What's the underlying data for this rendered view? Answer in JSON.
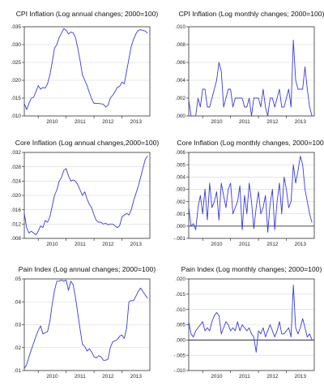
{
  "figure": {
    "colors": {
      "series": "#3a3adf",
      "grid": "#d6d6d6",
      "axis": "#333333",
      "zero_line": "#111111"
    }
  },
  "chart_data": [
    {
      "type": "line",
      "title": "CPI Inflation (Log annual changes; 2000=100)",
      "xlim": [
        2009.5,
        2014.0
      ],
      "ylim": [
        0.01,
        0.035
      ],
      "yticks": [
        0.01,
        0.015,
        0.02,
        0.025,
        0.03,
        0.035
      ],
      "ytick_labels": [
        ".010",
        ".015",
        ".020",
        ".025",
        ".030",
        ".035"
      ],
      "xticks": [
        2010,
        2011,
        2012,
        2013
      ],
      "xtick_labels": [
        "2010",
        "2011",
        "2012",
        "2013"
      ],
      "zero_line": false,
      "x": [
        2009.5,
        2009.583,
        2009.667,
        2009.75,
        2009.833,
        2009.917,
        2010.0,
        2010.083,
        2010.167,
        2010.25,
        2010.333,
        2010.417,
        2010.5,
        2010.583,
        2010.667,
        2010.75,
        2010.833,
        2010.917,
        2011.0,
        2011.083,
        2011.167,
        2011.25,
        2011.333,
        2011.417,
        2011.5,
        2011.583,
        2011.667,
        2011.75,
        2011.833,
        2011.917,
        2012.0,
        2012.083,
        2012.167,
        2012.25,
        2012.333,
        2012.417,
        2012.5,
        2012.583,
        2012.667,
        2012.75,
        2012.833,
        2012.917,
        2013.0,
        2013.083,
        2013.167,
        2013.25,
        2013.333,
        2013.417,
        2013.5,
        2013.583,
        2013.667,
        2013.75,
        2013.833,
        2013.917
      ],
      "y": [
        0.0135,
        0.0118,
        0.0135,
        0.015,
        0.0152,
        0.0168,
        0.0185,
        0.0175,
        0.018,
        0.0178,
        0.019,
        0.0215,
        0.025,
        0.029,
        0.03,
        0.032,
        0.0332,
        0.0345,
        0.034,
        0.033,
        0.0335,
        0.0333,
        0.032,
        0.029,
        0.0255,
        0.0215,
        0.02,
        0.0185,
        0.0165,
        0.0148,
        0.0135,
        0.0135,
        0.0135,
        0.0134,
        0.0133,
        0.0125,
        0.013,
        0.015,
        0.0158,
        0.0168,
        0.018,
        0.0183,
        0.0195,
        0.019,
        0.0225,
        0.026,
        0.0295,
        0.0315,
        0.033,
        0.034,
        0.0342,
        0.034,
        0.0338,
        0.0332
      ]
    },
    {
      "type": "line",
      "title": "CPI Inflation (Log monthly changes; 2000=100)",
      "xlim": [
        2009.5,
        2014.0
      ],
      "ylim": [
        0.0,
        0.01
      ],
      "yticks": [
        0.0,
        0.002,
        0.004,
        0.006,
        0.008,
        0.01
      ],
      "ytick_labels": [
        ".000",
        ".002",
        ".004",
        ".006",
        ".008",
        ".010"
      ],
      "xticks": [
        2010,
        2011,
        2012,
        2013
      ],
      "xtick_labels": [
        "2010",
        "2011",
        "2012",
        "2013"
      ],
      "zero_line": false,
      "x": [
        2009.5,
        2009.583,
        2009.667,
        2009.75,
        2009.833,
        2009.917,
        2010.0,
        2010.083,
        2010.167,
        2010.25,
        2010.333,
        2010.417,
        2010.5,
        2010.583,
        2010.667,
        2010.75,
        2010.833,
        2010.917,
        2011.0,
        2011.083,
        2011.167,
        2011.25,
        2011.333,
        2011.417,
        2011.5,
        2011.583,
        2011.667,
        2011.75,
        2011.833,
        2011.917,
        2012.0,
        2012.083,
        2012.167,
        2012.25,
        2012.333,
        2012.417,
        2012.5,
        2012.583,
        2012.667,
        2012.75,
        2012.833,
        2012.917,
        2013.0,
        2013.083,
        2013.167,
        2013.25,
        2013.333,
        2013.417,
        2013.5,
        2013.583,
        2013.667,
        2013.75,
        2013.833,
        2013.917
      ],
      "y": [
        0.0018,
        0.0,
        0.0,
        0.0,
        0.002,
        0.001,
        0.003,
        0.003,
        0.001,
        0.001,
        0.002,
        0.003,
        0.004,
        0.006,
        0.005,
        0.001,
        0.002,
        0.003,
        0.003,
        0.001,
        0.002,
        0.002,
        0.002,
        0.002,
        0.001,
        0.001,
        0.002,
        0.0,
        0.002,
        0.002,
        0.002,
        0.001,
        0.003,
        0.001,
        0.0,
        0.002,
        0.002,
        0.001,
        0.002,
        0.003,
        0.001,
        0.001,
        0.002,
        0.003,
        0.001,
        0.0085,
        0.004,
        0.003,
        0.003,
        0.003,
        0.0055,
        0.003,
        0.001,
        0.0
      ]
    },
    {
      "type": "line",
      "title": "Core Inflation (Log annual changes,2000=100)",
      "xlim": [
        2009.5,
        2014.0
      ],
      "ylim": [
        0.008,
        0.032
      ],
      "yticks": [
        0.008,
        0.012,
        0.016,
        0.02,
        0.024,
        0.028,
        0.032
      ],
      "ytick_labels": [
        ".008",
        ".012",
        ".016",
        ".020",
        ".024",
        ".028",
        ".032"
      ],
      "xticks": [
        2010,
        2011,
        2012,
        2013
      ],
      "xtick_labels": [
        "2010",
        "2011",
        "2012",
        "2013"
      ],
      "zero_line": false,
      "x": [
        2009.5,
        2009.583,
        2009.667,
        2009.75,
        2009.833,
        2009.917,
        2010.0,
        2010.083,
        2010.167,
        2010.25,
        2010.333,
        2010.417,
        2010.5,
        2010.583,
        2010.667,
        2010.75,
        2010.833,
        2010.917,
        2011.0,
        2011.083,
        2011.167,
        2011.25,
        2011.333,
        2011.417,
        2011.5,
        2011.583,
        2011.667,
        2011.75,
        2011.833,
        2011.917,
        2012.0,
        2012.083,
        2012.167,
        2012.25,
        2012.333,
        2012.417,
        2012.5,
        2012.583,
        2012.667,
        2012.75,
        2012.833,
        2012.917,
        2013.0,
        2013.083,
        2013.167,
        2013.25,
        2013.333,
        2013.417,
        2013.5,
        2013.583,
        2013.667,
        2013.75,
        2013.833,
        2013.917
      ],
      "y": [
        0.015,
        0.011,
        0.0095,
        0.01,
        0.0095,
        0.009,
        0.01,
        0.0115,
        0.011,
        0.013,
        0.0125,
        0.014,
        0.017,
        0.02,
        0.0215,
        0.024,
        0.025,
        0.027,
        0.0275,
        0.0255,
        0.024,
        0.0243,
        0.024,
        0.023,
        0.0215,
        0.02,
        0.021,
        0.019,
        0.0175,
        0.0165,
        0.0145,
        0.013,
        0.0125,
        0.0125,
        0.012,
        0.0122,
        0.0118,
        0.012,
        0.012,
        0.0115,
        0.011,
        0.0115,
        0.014,
        0.0145,
        0.015,
        0.0145,
        0.016,
        0.0185,
        0.0205,
        0.0225,
        0.025,
        0.0275,
        0.03,
        0.031
      ]
    },
    {
      "type": "line",
      "title": "Core Inflation (Log monthly changes, 2000=100)",
      "xlim": [
        2009.5,
        2014.0
      ],
      "ylim": [
        -0.001,
        0.006
      ],
      "yticks": [
        -0.001,
        0.0,
        0.001,
        0.002,
        0.003,
        0.004,
        0.005,
        0.006
      ],
      "ytick_labels": [
        "-.001",
        ".000",
        ".001",
        ".002",
        ".003",
        ".004",
        ".005",
        ".006"
      ],
      "xticks": [
        2010,
        2011,
        2012,
        2013
      ],
      "xtick_labels": [
        "2010",
        "2011",
        "2012",
        "2013"
      ],
      "zero_line": true,
      "x": [
        2009.5,
        2009.583,
        2009.667,
        2009.75,
        2009.833,
        2009.917,
        2010.0,
        2010.083,
        2010.167,
        2010.25,
        2010.333,
        2010.417,
        2010.5,
        2010.583,
        2010.667,
        2010.75,
        2010.833,
        2010.917,
        2011.0,
        2011.083,
        2011.167,
        2011.25,
        2011.333,
        2011.417,
        2011.5,
        2011.583,
        2011.667,
        2011.75,
        2011.833,
        2011.917,
        2012.0,
        2012.083,
        2012.167,
        2012.25,
        2012.333,
        2012.417,
        2012.5,
        2012.583,
        2012.667,
        2012.75,
        2012.833,
        2012.917,
        2013.0,
        2013.083,
        2013.167,
        2013.25,
        2013.333,
        2013.417,
        2013.5,
        2013.583,
        2013.667,
        2013.75,
        2013.833,
        2013.917
      ],
      "y": [
        0.0015,
        0.0,
        0.0002,
        -0.0003,
        0.0015,
        0.0025,
        0.001,
        0.003,
        0.0005,
        0.0035,
        0.0015,
        0.002,
        0.0028,
        0.0005,
        0.0035,
        0.0025,
        0.0015,
        0.003,
        0.0035,
        0.001,
        0.0015,
        0.002,
        0.0033,
        -0.0003,
        0.0025,
        0.001,
        0.0035,
        0.002,
        -0.0002,
        0.0015,
        0.0028,
        0.001,
        0.0015,
        0.0025,
        -0.0005,
        0.0018,
        0.003,
        -0.0003,
        0.002,
        0.0035,
        0.001,
        0.004,
        0.003,
        0.0015,
        0.002,
        0.005,
        0.0035,
        0.0045,
        0.0057,
        0.005,
        0.003,
        0.002,
        0.001,
        0.0003
      ]
    },
    {
      "type": "line",
      "title": "Pain Index (Log annual changes; 2000=100)",
      "xlim": [
        2009.5,
        2014.0
      ],
      "ylim": [
        0.01,
        0.05
      ],
      "yticks": [
        0.01,
        0.02,
        0.03,
        0.04,
        0.05
      ],
      "ytick_labels": [
        ".01",
        ".02",
        ".03",
        ".04",
        ".05"
      ],
      "xticks": [
        2010,
        2011,
        2012,
        2013
      ],
      "xtick_labels": [
        "2010",
        "2011",
        "2012",
        "2013"
      ],
      "zero_line": false,
      "x": [
        2009.5,
        2009.583,
        2009.667,
        2009.75,
        2009.833,
        2009.917,
        2010.0,
        2010.083,
        2010.167,
        2010.25,
        2010.333,
        2010.417,
        2010.5,
        2010.583,
        2010.667,
        2010.75,
        2010.833,
        2010.917,
        2011.0,
        2011.083,
        2011.167,
        2011.25,
        2011.333,
        2011.417,
        2011.5,
        2011.583,
        2011.667,
        2011.75,
        2011.833,
        2011.917,
        2012.0,
        2012.083,
        2012.167,
        2012.25,
        2012.333,
        2012.417,
        2012.5,
        2012.583,
        2012.667,
        2012.75,
        2012.833,
        2012.917,
        2013.0,
        2013.083,
        2013.167,
        2013.25,
        2013.333,
        2013.417,
        2013.5,
        2013.583,
        2013.667,
        2013.75,
        2013.833,
        2013.917
      ],
      "y": [
        0.011,
        0.0125,
        0.016,
        0.019,
        0.022,
        0.025,
        0.0275,
        0.0295,
        0.026,
        0.0265,
        0.027,
        0.0315,
        0.039,
        0.045,
        0.049,
        0.049,
        0.0495,
        0.049,
        0.0495,
        0.045,
        0.049,
        0.0475,
        0.042,
        0.035,
        0.028,
        0.0215,
        0.0205,
        0.0185,
        0.0195,
        0.018,
        0.016,
        0.0155,
        0.0165,
        0.016,
        0.0145,
        0.0145,
        0.015,
        0.02,
        0.0225,
        0.023,
        0.0235,
        0.025,
        0.0255,
        0.024,
        0.0285,
        0.04,
        0.0405,
        0.0405,
        0.0425,
        0.0445,
        0.046,
        0.0445,
        0.043,
        0.0415
      ]
    },
    {
      "type": "line",
      "title": "Pain Index (Log monthly changes; 2000=100)",
      "xlim": [
        2009.5,
        2014.0
      ],
      "ylim": [
        -0.01,
        0.02
      ],
      "yticks": [
        -0.01,
        -0.005,
        0.0,
        0.005,
        0.01,
        0.015,
        0.02
      ],
      "ytick_labels": [
        "-.010",
        "-.005",
        ".000",
        ".005",
        ".010",
        ".015",
        ".020"
      ],
      "xticks": [
        2010,
        2011,
        2012,
        2013
      ],
      "xtick_labels": [
        "2010",
        "2011",
        "2012",
        "2013"
      ],
      "zero_line": true,
      "x": [
        2009.5,
        2009.583,
        2009.667,
        2009.75,
        2009.833,
        2009.917,
        2010.0,
        2010.083,
        2010.167,
        2010.25,
        2010.333,
        2010.417,
        2010.5,
        2010.583,
        2010.667,
        2010.75,
        2010.833,
        2010.917,
        2011.0,
        2011.083,
        2011.167,
        2011.25,
        2011.333,
        2011.417,
        2011.5,
        2011.583,
        2011.667,
        2011.75,
        2011.833,
        2011.917,
        2012.0,
        2012.083,
        2012.167,
        2012.25,
        2012.333,
        2012.417,
        2012.5,
        2012.583,
        2012.667,
        2012.75,
        2012.833,
        2012.917,
        2013.0,
        2013.083,
        2013.167,
        2013.25,
        2013.333,
        2013.417,
        2013.5,
        2013.583,
        2013.667,
        2013.75,
        2013.833,
        2013.917
      ],
      "y": [
        0.006,
        0.002,
        0.001,
        0.003,
        0.004,
        0.005,
        0.006,
        0.003,
        0.004,
        0.003,
        0.006,
        0.008,
        0.009,
        0.008,
        0.002,
        0.004,
        0.006,
        0.005,
        0.003,
        0.004,
        0.003,
        0.006,
        0.003,
        0.005,
        0.004,
        0.003,
        0.004,
        0.002,
        0.001,
        -0.004,
        0.003,
        0.002,
        0.004,
        0.001,
        0.003,
        0.005,
        0.003,
        0.001,
        0.003,
        0.006,
        0.002,
        0.002,
        0.003,
        0.004,
        0.001,
        0.018,
        0.004,
        0.002,
        0.004,
        0.007,
        0.004,
        0.001,
        0.002,
        0.0
      ]
    }
  ]
}
